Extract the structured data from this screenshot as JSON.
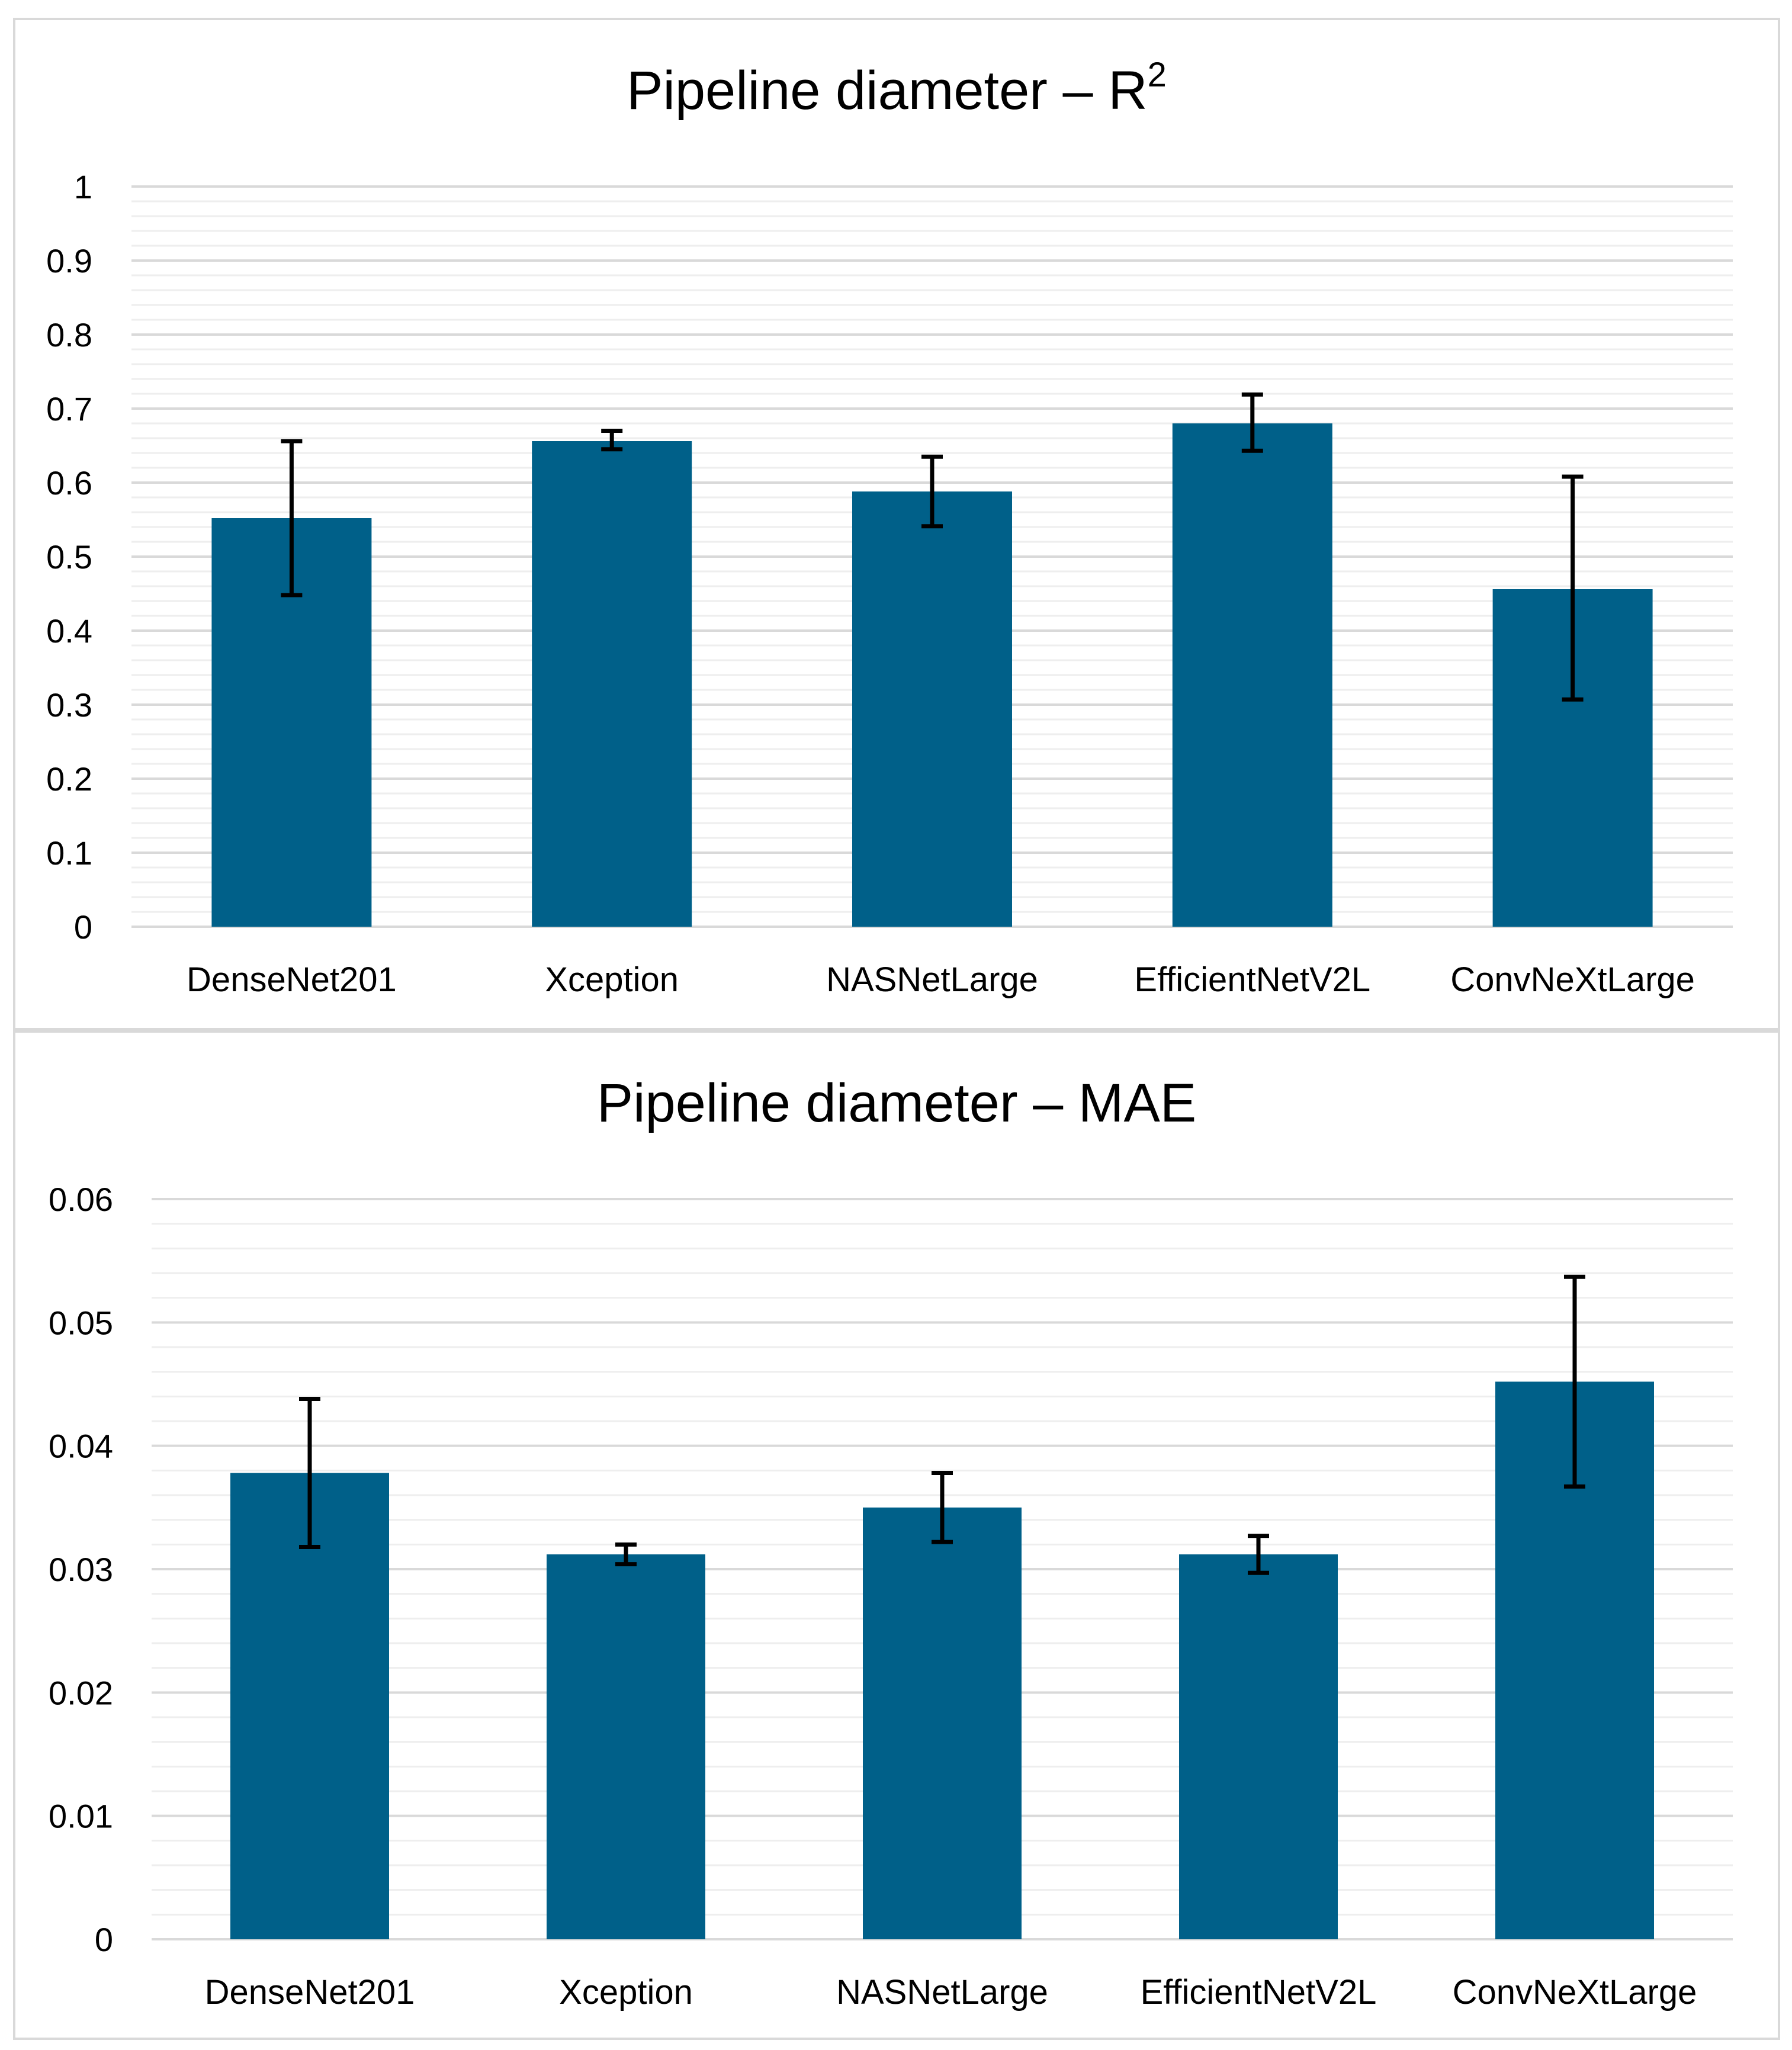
{
  "colors": {
    "bar": "#006089",
    "error_bar": "#000000",
    "major_grid": "#d9d9d9",
    "minor_grid": "#eeeeee",
    "frame": "#d9d9d9"
  },
  "chart_data": [
    {
      "id": "r2",
      "type": "bar",
      "title": "Pipeline diameter – R",
      "title_superscript": "2",
      "xlabel": "",
      "ylabel": "",
      "ylim": [
        0,
        1
      ],
      "major_step": 0.1,
      "minor_step": 0.02,
      "y_ticks": [
        "0",
        "0.1",
        "0.2",
        "0.3",
        "0.4",
        "0.5",
        "0.6",
        "0.7",
        "0.8",
        "0.9",
        "1"
      ],
      "grid": true,
      "legend": "none",
      "categories": [
        "DenseNet201",
        "Xception",
        "NASNetLarge",
        "EfficientNetV2L",
        "ConvNeXtLarge"
      ],
      "series": [
        {
          "name": "R2",
          "values": [
            0.552,
            0.656,
            0.588,
            0.68,
            0.456
          ],
          "error_low": [
            0.448,
            0.645,
            0.541,
            0.643,
            0.307
          ],
          "error_high": [
            0.656,
            0.67,
            0.635,
            0.719,
            0.608
          ]
        }
      ]
    },
    {
      "id": "mae",
      "type": "bar",
      "title": "Pipeline diameter – MAE",
      "title_superscript": "",
      "xlabel": "",
      "ylabel": "",
      "ylim": [
        0,
        0.06
      ],
      "major_step": 0.01,
      "minor_step": 0.002,
      "y_ticks": [
        "0",
        "0.01",
        "0.02",
        "0.03",
        "0.04",
        "0.05",
        "0.06"
      ],
      "grid": true,
      "legend": "none",
      "categories": [
        "DenseNet201",
        "Xception",
        "NASNetLarge",
        "EfficientNetV2L",
        "ConvNeXtLarge"
      ],
      "series": [
        {
          "name": "MAE",
          "values": [
            0.0378,
            0.0312,
            0.035,
            0.0312,
            0.0452
          ],
          "error_low": [
            0.0318,
            0.0304,
            0.0322,
            0.0297,
            0.0367
          ],
          "error_high": [
            0.0438,
            0.032,
            0.0378,
            0.0327,
            0.0537
          ]
        }
      ]
    }
  ]
}
